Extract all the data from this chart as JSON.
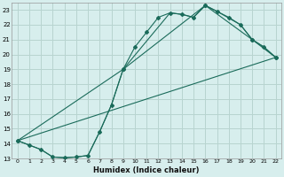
{
  "xlabel": "Humidex (Indice chaleur)",
  "bg_color": "#d7eeed",
  "grid_color": "#b8d4d0",
  "line_color": "#1a6b5a",
  "xlim": [
    -0.5,
    22.5
  ],
  "ylim": [
    13,
    23.5
  ],
  "xticks": [
    0,
    1,
    2,
    3,
    4,
    5,
    6,
    7,
    8,
    9,
    10,
    11,
    12,
    13,
    14,
    15,
    16,
    17,
    18,
    19,
    20,
    21,
    22
  ],
  "yticks": [
    13,
    14,
    15,
    16,
    17,
    18,
    19,
    20,
    21,
    22,
    23
  ],
  "line1_x": [
    0,
    1,
    2,
    3,
    4,
    5,
    6,
    7,
    8,
    9,
    10,
    11,
    12,
    13,
    14,
    15,
    16,
    17,
    18,
    19,
    20,
    21,
    22
  ],
  "line1_y": [
    14.2,
    13.9,
    13.6,
    13.1,
    13.05,
    13.1,
    13.2,
    14.8,
    16.6,
    19.0,
    20.5,
    21.5,
    22.5,
    22.8,
    22.7,
    22.5,
    23.3,
    22.9,
    22.5,
    22.0,
    21.0,
    20.5,
    19.8
  ],
  "line2_x": [
    0,
    2,
    3,
    4,
    5,
    6,
    7,
    8,
    9,
    13,
    14,
    15,
    16,
    17,
    19,
    20,
    21,
    22
  ],
  "line2_y": [
    14.2,
    13.6,
    13.1,
    13.05,
    13.1,
    13.2,
    14.8,
    16.6,
    19.0,
    22.8,
    22.7,
    22.5,
    23.3,
    22.9,
    22.0,
    21.0,
    20.5,
    19.8
  ],
  "line3_x": [
    0,
    22
  ],
  "line3_y": [
    14.2,
    19.8
  ],
  "line4_x": [
    0,
    9,
    16,
    20,
    22
  ],
  "line4_y": [
    14.2,
    19.0,
    23.3,
    21.0,
    19.8
  ]
}
